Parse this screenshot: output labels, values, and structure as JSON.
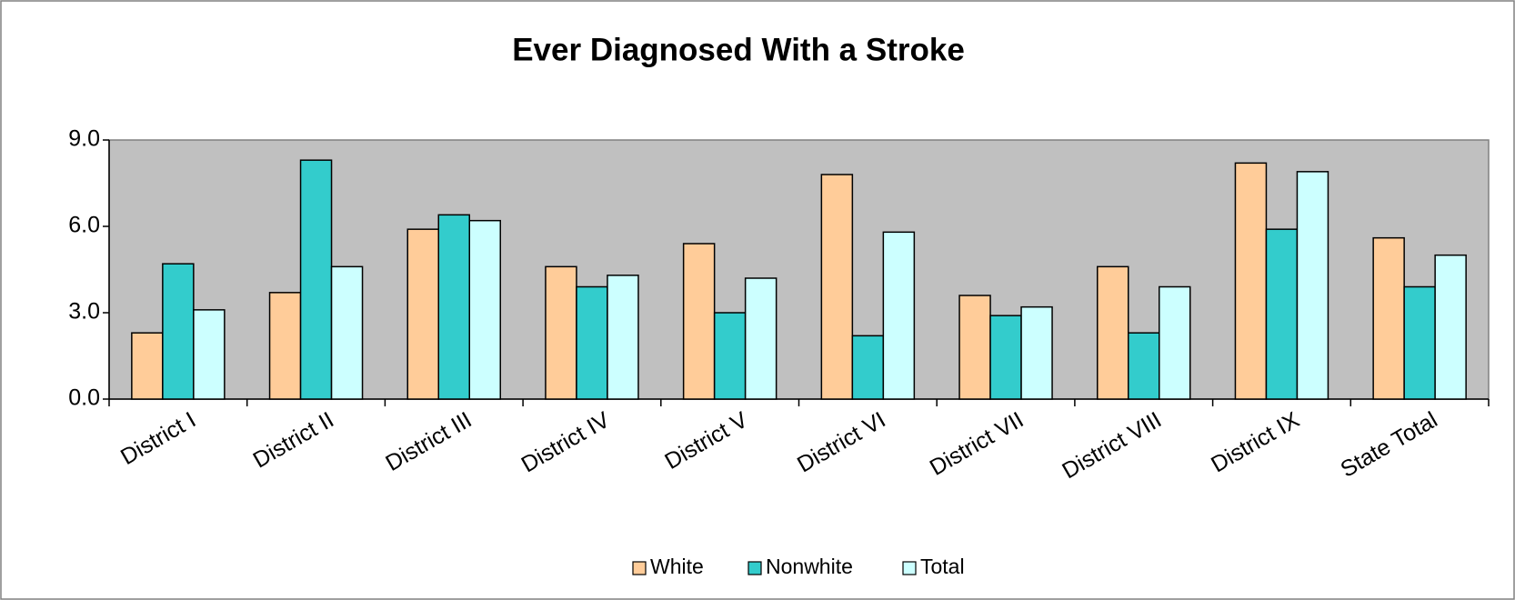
{
  "chart_data": {
    "type": "bar",
    "title": "Ever Diagnosed With a Stroke",
    "categories": [
      "District I",
      "District II",
      "District III",
      "District IV",
      "District V",
      "District VI",
      "District VII",
      "District VIII",
      "District IX",
      "State Total"
    ],
    "series": [
      {
        "name": "White",
        "color": "#FFCC99",
        "values": [
          2.3,
          3.7,
          5.9,
          4.6,
          5.4,
          7.8,
          3.6,
          4.6,
          8.2,
          5.6
        ]
      },
      {
        "name": "Nonwhite",
        "color": "#33CCCC",
        "values": [
          4.7,
          8.3,
          6.4,
          3.9,
          3.0,
          2.2,
          2.9,
          2.3,
          5.9,
          3.9
        ]
      },
      {
        "name": "Total",
        "color": "#CCFFFF",
        "values": [
          3.1,
          4.6,
          6.2,
          4.3,
          4.2,
          5.8,
          3.2,
          3.9,
          7.9,
          5.0
        ]
      }
    ],
    "ylim": [
      0,
      9
    ],
    "yticks": [
      {
        "value": 0,
        "label": "0.0"
      },
      {
        "value": 3,
        "label": "3.0"
      },
      {
        "value": 6,
        "label": "6.0"
      },
      {
        "value": 9,
        "label": "9.0"
      }
    ],
    "legend": "bottom",
    "plot_background": "#C0C0C0"
  }
}
